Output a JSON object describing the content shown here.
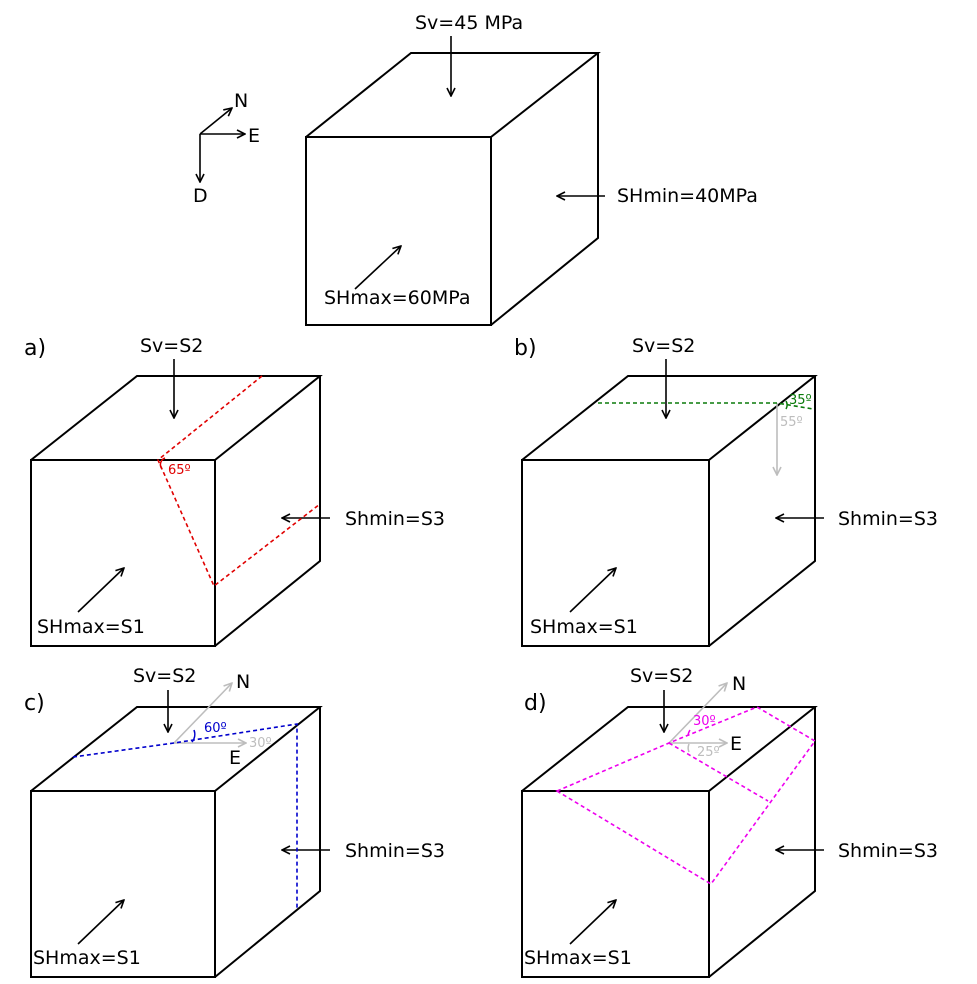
{
  "colors": {
    "red": "#e00000",
    "green": "#0a7a0a",
    "blue": "#0000cc",
    "magenta": "#ee00ee",
    "gray": "#bdbdbd",
    "black": "#000000"
  },
  "compass": {
    "north": "N",
    "east": "E",
    "down": "D"
  },
  "top_cube": {
    "sv": "Sv=45 MPa",
    "shmin": "SHmin=40MPa",
    "shmax": "SHmax=60MPa"
  },
  "panels": {
    "a": {
      "tag": "a)",
      "sv": "Sv=S2",
      "shmin": "Shmin=S3",
      "shmax": "SHmax=S1",
      "angle": "65º"
    },
    "b": {
      "tag": "b)",
      "sv": "Sv=S2",
      "shmin": "Shmin=S3",
      "shmax": "SHmax=S1",
      "angle_dip": "35º",
      "angle_comp": "55º"
    },
    "c": {
      "tag": "c)",
      "sv": "Sv=S2",
      "shmin": "Shmin=S3",
      "shmax": "SHmax=S1",
      "angle_dip": "60º",
      "angle_strike": "30º",
      "north": "N",
      "east": "E"
    },
    "d": {
      "tag": "d)",
      "sv": "Sv=S2",
      "shmin": "Shmin=S3",
      "shmax": "SHmax=S1",
      "angle_dip": "30º",
      "angle_strike": "25º",
      "north": "N",
      "east": "E"
    }
  }
}
